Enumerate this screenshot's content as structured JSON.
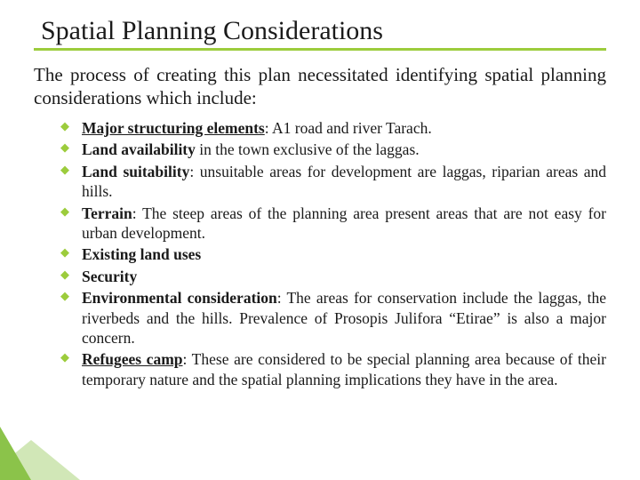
{
  "title": "Spatial Planning Considerations",
  "intro": "The process of creating this plan necessitated identifying spatial planning considerations which include:",
  "bullets": [
    {
      "label": "Major structuring elements",
      "rest": ": A1 road and river Tarach."
    },
    {
      "label": "Land availability",
      "rest": " in the town exclusive of the laggas."
    },
    {
      "label": "Land suitability",
      "rest": ": unsuitable areas for development are laggas, riparian areas and hills."
    },
    {
      "label": "Terrain",
      "rest": ": The steep areas of the planning area present areas that are not easy for urban development."
    },
    {
      "label": "Existing land uses",
      "rest": ""
    },
    {
      "label": "Security",
      "rest": ""
    },
    {
      "label": "Environmental consideration",
      "rest": ": The areas for conservation include the laggas, the riverbeds and the hills. Prevalence of Prosopis Julifora “Etirae” is also a major concern."
    },
    {
      "label": "Refugees camp",
      "rest": ": These are considered to be special planning area because of their temporary nature and the spatial planning implications they have in the area."
    }
  ],
  "colors": {
    "accent": "#9ccc3c",
    "text": "#1a1a1a",
    "background": "#ffffff"
  },
  "typography": {
    "title_fontsize": 30,
    "intro_fontsize": 21,
    "bullet_fontsize": 17.5,
    "font_family_title": "Times New Roman",
    "font_family_body": "Times New Roman"
  }
}
